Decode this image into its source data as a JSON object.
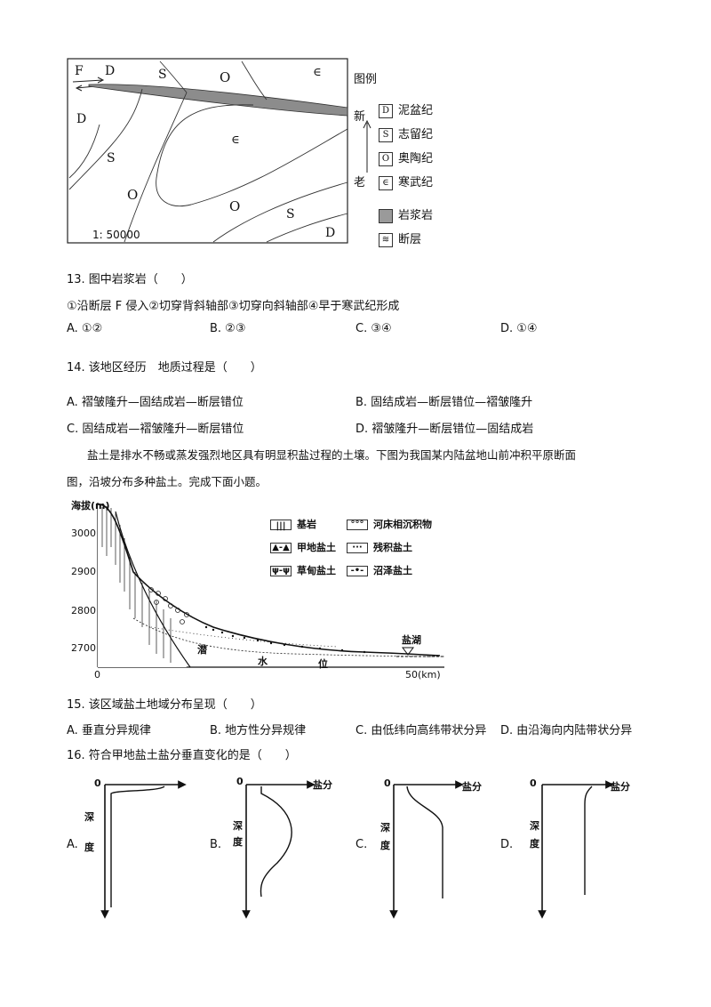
{
  "geo_map": {
    "labels": {
      "F": "F",
      "D_top": "D",
      "S_top": "S",
      "O_top": "O",
      "E_top": "∈",
      "D_left": "D",
      "S_left": "S",
      "E_center": "∈",
      "O_left": "O",
      "O_bottom": "O",
      "S_bottom": "S",
      "D_bottom": "D"
    },
    "scale": "1: 50000",
    "legend_title": "图例",
    "age_new": "新",
    "age_old": "老",
    "legend": [
      {
        "symbol": "D",
        "label": "泥盆纪"
      },
      {
        "symbol": "S",
        "label": "志留纪"
      },
      {
        "symbol": "O",
        "label": "奥陶纪"
      },
      {
        "symbol": "∈",
        "label": "寒武纪"
      },
      {
        "symbol": "",
        "label": "岩浆岩"
      },
      {
        "symbol": "≋",
        "label": "断层"
      }
    ]
  },
  "q13": {
    "stem": "13. 图中岩浆岩（　　）",
    "statement": "①沿断层 F 侵入②切穿背斜轴部③切穿向斜轴部④早于寒武纪形成",
    "options": [
      "A. ①②",
      "B. ②③",
      "C. ③④",
      "D. ①④"
    ]
  },
  "q14": {
    "stem": "14. 该地区经历　地质过程是（　　）",
    "options": [
      "A. 褶皱隆升—固结成岩—断层错位",
      "B. 固结成岩—断层错位—褶皱隆升",
      "C. 固结成岩—褶皱隆升—断层错位",
      "D. 褶皱隆升—断层错位—固结成岩"
    ]
  },
  "passage": {
    "line1": "盐土是排水不畅或蒸发强烈地区具有明显积盐过程的土壤。下图为我国某内陆盆地山前冲积平原断面",
    "line2": "图，沿坡分布多种盐土。完成下面小题。"
  },
  "profile_chart": {
    "y_axis_label": "海拔(m)",
    "y_ticks": [
      "3000",
      "2900",
      "2800",
      "2700"
    ],
    "x_start": "0",
    "x_end": "50(km)",
    "water_table_chars": [
      "潜",
      "水",
      "位"
    ],
    "salt_lake": "盐湖",
    "legend": [
      "基岩",
      "河床相沉积物",
      "甲地盐土",
      "残积盐土",
      "草甸盐土",
      "沼泽盐土"
    ]
  },
  "q15": {
    "stem": "15. 该区域盐土地域分布呈现（　　）",
    "options": [
      "A. 垂直分异规律",
      "B. 地方性分异规律",
      "C. 由低纬向高纬带状分异",
      "D. 由沿海向内陆带状分异"
    ]
  },
  "q16": {
    "stem": "16. 符合甲地盐土盐分垂直变化的是（　　）",
    "axis_zero": "0",
    "axis_x": "盐分",
    "axis_y": [
      "深",
      "度"
    ],
    "options": [
      "A.",
      "B.",
      "C.",
      "D."
    ]
  }
}
